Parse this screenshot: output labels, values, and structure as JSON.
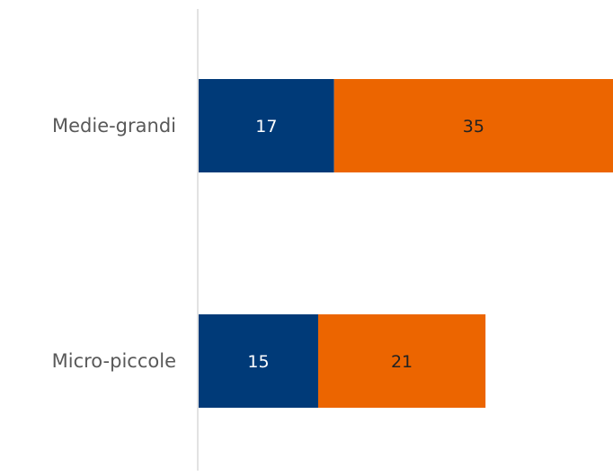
{
  "chart_data": {
    "type": "bar",
    "orientation": "horizontal",
    "stacked": true,
    "categories": [
      "Medie-grandi",
      "Micro-piccole"
    ],
    "series": [
      {
        "values": [
          17,
          15
        ],
        "color": "#003a78",
        "label_color": "#ffffff"
      },
      {
        "values": [
          35,
          21
        ],
        "color": "#ec6500",
        "label_color": "#222222"
      }
    ],
    "xlim": [
      0,
      52
    ],
    "grid": false,
    "legend": "none"
  }
}
